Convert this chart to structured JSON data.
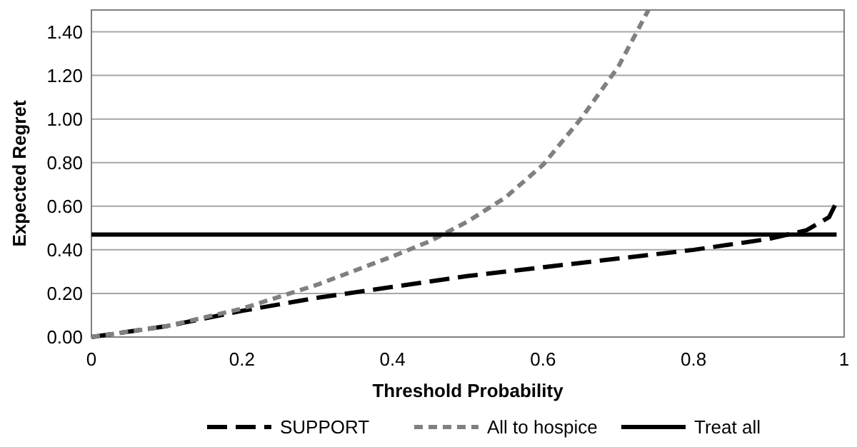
{
  "chart_data": {
    "type": "line",
    "xlabel": "Threshold Probability",
    "ylabel": "Expected Regret",
    "xlim": [
      0,
      1
    ],
    "ylim": [
      0,
      1.5
    ],
    "xticks": [
      0,
      0.2,
      0.4,
      0.6,
      0.8,
      1
    ],
    "yticks": [
      {
        "value": 0,
        "label": "0.00"
      },
      {
        "value": 0.2,
        "label": "0.20"
      },
      {
        "value": 0.4,
        "label": "0.40"
      },
      {
        "value": 0.6,
        "label": "0.60"
      },
      {
        "value": 0.8,
        "label": "0.80"
      },
      {
        "value": 1,
        "label": "1.00"
      },
      {
        "value": 1.2,
        "label": "1.20"
      },
      {
        "value": 1.4,
        "label": "1.40"
      }
    ],
    "grid": "y",
    "legend": "bottom",
    "marker": "none",
    "series": [
      {
        "name": "SUPPORT",
        "color": "#000000",
        "line_style": "dashed",
        "x": [
          0,
          0.1,
          0.2,
          0.3,
          0.4,
          0.5,
          0.6,
          0.7,
          0.8,
          0.9,
          0.95,
          0.98,
          0.99
        ],
        "values": [
          0,
          0.05,
          0.12,
          0.18,
          0.23,
          0.28,
          0.32,
          0.36,
          0.4,
          0.45,
          0.49,
          0.55,
          0.62
        ]
      },
      {
        "name": "All to hospice",
        "color": "#808080",
        "line_style": "dotted",
        "x": [
          0,
          0.1,
          0.2,
          0.3,
          0.4,
          0.45,
          0.5,
          0.55,
          0.6,
          0.65,
          0.7,
          0.74
        ],
        "values": [
          0,
          0.05,
          0.13,
          0.24,
          0.37,
          0.44,
          0.53,
          0.64,
          0.79,
          1.0,
          1.24,
          1.5
        ]
      },
      {
        "name": "Treat all",
        "color": "#000000",
        "line_style": "solid",
        "x": [
          0,
          0.99
        ],
        "values": [
          0.47,
          0.47
        ]
      }
    ]
  }
}
